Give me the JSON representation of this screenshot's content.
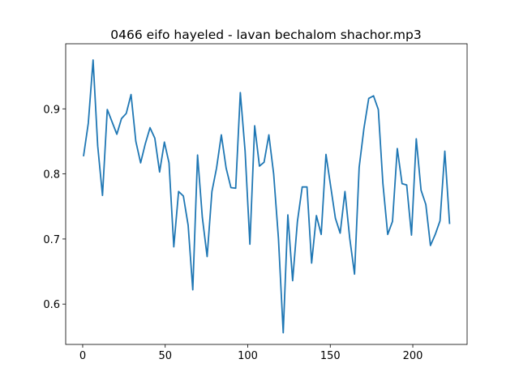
{
  "chart_data": {
    "type": "line",
    "title": "0466 eifo hayeled - lavan bechalom shachor.mp3",
    "x": [
      0.5,
      3.4,
      6.3,
      9.1,
      12.0,
      14.9,
      17.8,
      20.7,
      23.5,
      26.4,
      29.3,
      32.2,
      35.1,
      37.9,
      40.8,
      43.7,
      46.6,
      49.5,
      52.3,
      55.2,
      58.1,
      61.0,
      63.9,
      66.7,
      69.6,
      72.5,
      75.4,
      78.3,
      81.1,
      84.0,
      86.9,
      89.8,
      92.7,
      95.5,
      98.4,
      101.3,
      104.2,
      107.1,
      109.9,
      112.8,
      115.7,
      118.6,
      121.5,
      124.3,
      127.2,
      130.1,
      133.0,
      135.9,
      138.7,
      141.6,
      144.5,
      147.4,
      150.3,
      153.1,
      156.0,
      158.9,
      161.8,
      164.7,
      167.5,
      170.4,
      173.3,
      176.2,
      179.1,
      181.9,
      184.8,
      187.7,
      190.6,
      193.5,
      196.3,
      199.2,
      202.1,
      205.0,
      207.9,
      210.7,
      213.6,
      216.5,
      219.4,
      222.3
    ],
    "series": [
      {
        "color": "#1f77b4",
        "values": [
          0.827,
          0.878,
          0.975,
          0.843,
          0.767,
          0.899,
          0.88,
          0.861,
          0.885,
          0.893,
          0.922,
          0.85,
          0.817,
          0.846,
          0.871,
          0.855,
          0.803,
          0.849,
          0.817,
          0.688,
          0.773,
          0.766,
          0.721,
          0.622,
          0.829,
          0.733,
          0.673,
          0.773,
          0.809,
          0.86,
          0.809,
          0.779,
          0.778,
          0.925,
          0.835,
          0.692,
          0.874,
          0.812,
          0.818,
          0.86,
          0.8,
          0.701,
          0.556,
          0.737,
          0.636,
          0.727,
          0.78,
          0.78,
          0.663,
          0.736,
          0.707,
          0.83,
          0.78,
          0.732,
          0.709,
          0.773,
          0.701,
          0.646,
          0.81,
          0.87,
          0.916,
          0.92,
          0.899,
          0.785,
          0.707,
          0.727,
          0.839,
          0.785,
          0.783,
          0.706,
          0.854,
          0.775,
          0.753,
          0.69,
          0.707,
          0.728,
          0.835,
          0.723
        ]
      }
    ],
    "xlim": [
      -10.3,
      232.9
    ],
    "ylim": [
      0.538,
      1.0
    ],
    "xticks": [
      0,
      50,
      100,
      150,
      200
    ],
    "yticks": [
      0.6,
      0.7,
      0.8,
      0.9
    ]
  }
}
